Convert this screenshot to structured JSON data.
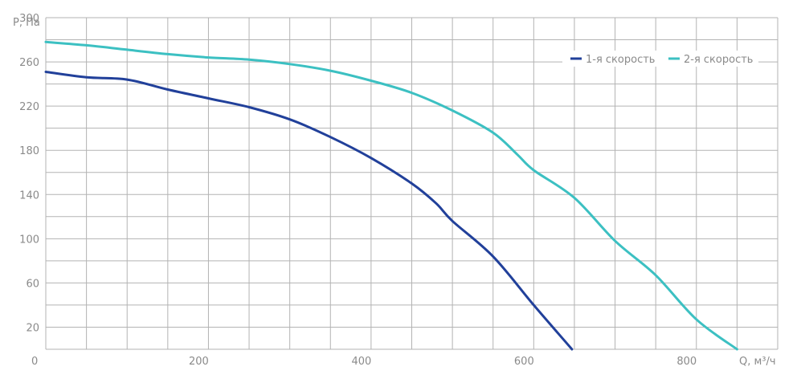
{
  "chart_data": {
    "type": "line",
    "xlabel": "Q, м³/ч",
    "ylabel": "P, Па",
    "xlim": [
      0,
      900
    ],
    "ylim": [
      0,
      300
    ],
    "x_ticks": [
      0,
      200,
      400,
      600,
      800
    ],
    "y_ticks": [
      20,
      60,
      100,
      140,
      180,
      220,
      260,
      300
    ],
    "x_tick_labels": [
      "0",
      "200",
      "400",
      "600",
      "800"
    ],
    "y_tick_labels": [
      "20",
      "60",
      "100",
      "140",
      "180",
      "220",
      "260",
      "300"
    ],
    "grid": true,
    "legend_position": "top-right",
    "series": [
      {
        "name": "1-я скорость",
        "color": "#21409a",
        "points": [
          [
            0,
            251
          ],
          [
            50,
            246
          ],
          [
            100,
            244
          ],
          [
            150,
            235
          ],
          [
            200,
            227
          ],
          [
            250,
            219
          ],
          [
            300,
            208
          ],
          [
            350,
            192
          ],
          [
            400,
            173
          ],
          [
            450,
            150
          ],
          [
            480,
            132
          ],
          [
            500,
            116
          ],
          [
            550,
            84
          ],
          [
            600,
            40
          ],
          [
            647,
            0
          ]
        ]
      },
      {
        "name": "2-я скорость",
        "color": "#3cc0c2",
        "points": [
          [
            0,
            278
          ],
          [
            50,
            275
          ],
          [
            100,
            271
          ],
          [
            150,
            267
          ],
          [
            200,
            264
          ],
          [
            250,
            262
          ],
          [
            300,
            258
          ],
          [
            350,
            252
          ],
          [
            400,
            243
          ],
          [
            450,
            232
          ],
          [
            500,
            216
          ],
          [
            550,
            196
          ],
          [
            580,
            176
          ],
          [
            600,
            162
          ],
          [
            650,
            137
          ],
          [
            700,
            98
          ],
          [
            750,
            67
          ],
          [
            800,
            27
          ],
          [
            850,
            0
          ]
        ]
      }
    ]
  }
}
